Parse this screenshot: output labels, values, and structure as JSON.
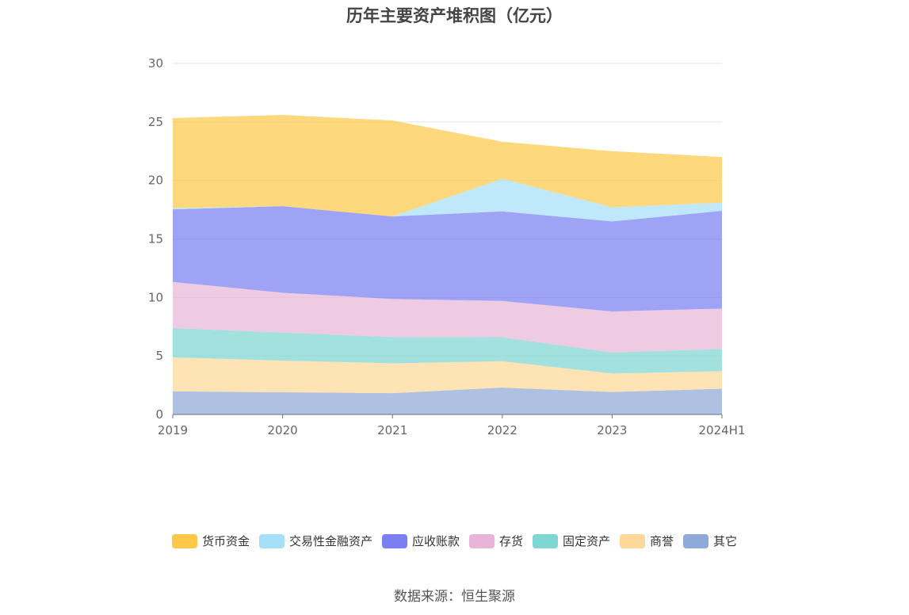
{
  "chart_data": {
    "type": "area",
    "stacked": true,
    "title": "历年主要资产堆积图（亿元）",
    "source": "数据来源：恒生聚源",
    "categories": [
      "2019",
      "2020",
      "2021",
      "2022",
      "2023",
      "2024H1"
    ],
    "y_ticks": [
      "0",
      "5",
      "10",
      "15",
      "20",
      "25",
      "30"
    ],
    "ylim": [
      0,
      30
    ],
    "grid": true,
    "legend_position": "bottom",
    "series": [
      {
        "name": "其它",
        "color": "#8fa9d8",
        "values": [
          1.98,
          1.9,
          1.82,
          2.3,
          1.92,
          2.2
        ]
      },
      {
        "name": "商誉",
        "color": "#fed898",
        "values": [
          2.9,
          2.7,
          2.55,
          2.25,
          1.58,
          1.5
        ]
      },
      {
        "name": "固定资产",
        "color": "#7fd6d3",
        "values": [
          2.5,
          2.4,
          2.25,
          2.05,
          1.8,
          1.9
        ]
      },
      {
        "name": "存货",
        "color": "#e8b5d8",
        "values": [
          3.95,
          3.4,
          3.25,
          3.1,
          3.5,
          3.45
        ]
      },
      {
        "name": "应收账款",
        "color": "#7a80f2",
        "values": [
          6.2,
          7.4,
          7.05,
          7.65,
          7.7,
          8.35
        ]
      },
      {
        "name": "交易性金融资产",
        "color": "#a6e0f8",
        "values": [
          0.1,
          0.0,
          0.0,
          2.8,
          1.2,
          0.7
        ]
      },
      {
        "name": "货币资金",
        "color": "#fec94a",
        "values": [
          7.7,
          7.8,
          8.2,
          3.15,
          4.8,
          3.9
        ]
      }
    ]
  }
}
